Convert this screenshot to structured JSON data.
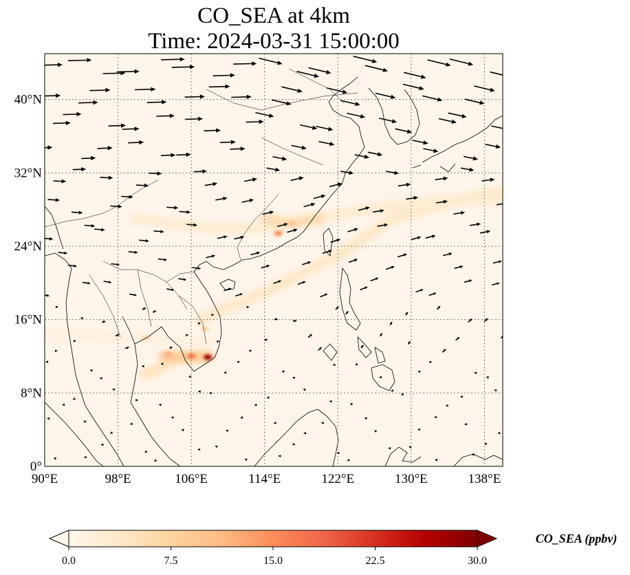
{
  "title": {
    "line1": "CO_SEA at 4km",
    "line2": "Time: 2024-03-31 15:00:00"
  },
  "map": {
    "lon_range": [
      90,
      140
    ],
    "lat_range": [
      0,
      45
    ],
    "lon_ticks": [
      {
        "value": 90,
        "label": "90°E"
      },
      {
        "value": 98,
        "label": "98°E"
      },
      {
        "value": 106,
        "label": "106°E"
      },
      {
        "value": 114,
        "label": "114°E"
      },
      {
        "value": 122,
        "label": "122°E"
      },
      {
        "value": 130,
        "label": "130°E"
      },
      {
        "value": 138,
        "label": "138°E"
      }
    ],
    "lat_ticks": [
      {
        "value": 0,
        "label": "0°"
      },
      {
        "value": 8,
        "label": "8°N"
      },
      {
        "value": 16,
        "label": "16°N"
      },
      {
        "value": 24,
        "label": "24°N"
      },
      {
        "value": 32,
        "label": "32°N"
      },
      {
        "value": 40,
        "label": "40°N"
      }
    ],
    "gridlines": "dotted",
    "background_color": "#fff5eb",
    "coast_color": "#000000"
  },
  "colorbar": {
    "label": "CO_SEA (ppbv)",
    "min": 0,
    "max": 30,
    "ticks": [
      "0.0",
      "7.5",
      "15.0",
      "22.5",
      "30.0"
    ],
    "colormap": "OrRd",
    "extend": "both",
    "stops": [
      "#fff7ec",
      "#fee8c8",
      "#fdd49e",
      "#fdbb84",
      "#fc8d59",
      "#ef6548",
      "#d7301f",
      "#b30000",
      "#7f0000"
    ]
  },
  "plumes": [
    {
      "path": [
        [
          90,
          14.5
        ],
        [
          100,
          14
        ],
        [
          108,
          13.5
        ]
      ],
      "value": 1.5
    },
    {
      "path": [
        [
          101,
          10
        ],
        [
          104,
          11.5
        ],
        [
          108,
          12
        ]
      ],
      "value": 5
    },
    {
      "path": [
        [
          103,
          12
        ],
        [
          106,
          12
        ],
        [
          107.8,
          12
        ]
      ],
      "value": 9
    },
    {
      "path": [
        [
          107,
          16
        ],
        [
          114,
          19
        ],
        [
          122,
          23
        ],
        [
          128,
          27
        ],
        [
          135,
          29
        ],
        [
          140,
          30
        ]
      ],
      "value": 4
    },
    {
      "path": [
        [
          100,
          27
        ],
        [
          108,
          26
        ],
        [
          114,
          26
        ],
        [
          119,
          27
        ],
        [
          125,
          28
        ],
        [
          133,
          29
        ],
        [
          140,
          29
        ]
      ],
      "value": 3
    },
    {
      "path": [
        [
          114,
          27
        ],
        [
          117,
          26.5
        ],
        [
          120,
          27
        ]
      ],
      "value": 6
    }
  ],
  "hotspots": [
    {
      "lon": 107.8,
      "lat": 11.9,
      "value": 28
    },
    {
      "lon": 106,
      "lat": 12,
      "value": 17
    },
    {
      "lon": 103.5,
      "lat": 12.2,
      "value": 12
    },
    {
      "lon": 115.5,
      "lat": 25.4,
      "value": 15
    },
    {
      "lon": 117,
      "lat": 26.5,
      "value": 10
    },
    {
      "lon": 101,
      "lat": 14,
      "value": 6
    },
    {
      "lon": 107.5,
      "lat": 15,
      "value": 7
    }
  ]
}
